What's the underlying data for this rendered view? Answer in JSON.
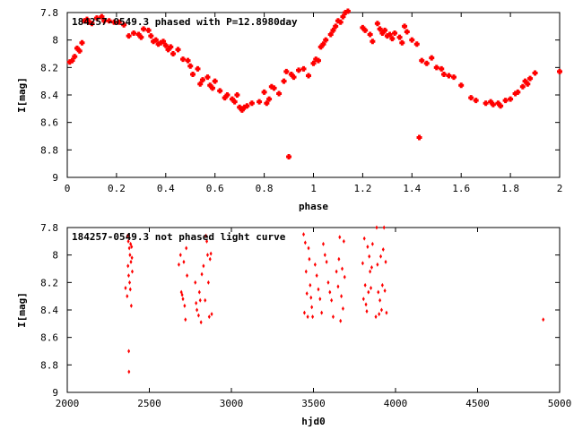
{
  "chart_data": [
    {
      "type": "scatter",
      "title": "184257-0549.3 phased with P=12.8980day",
      "xlabel": "phase",
      "ylabel": "I[mag]",
      "xlim": [
        0,
        2
      ],
      "ylim": [
        9,
        7.8
      ],
      "y_inverted": true,
      "xticks": [
        "0",
        "0.2",
        "0.4",
        "0.6",
        "0.8",
        "1",
        "1.2",
        "1.4",
        "1.6",
        "1.8",
        "2"
      ],
      "yticks": [
        "7.8",
        "8",
        "8.2",
        "8.4",
        "8.6",
        "8.8",
        "9"
      ],
      "marker_color": "#ff0000",
      "points": [
        [
          0.01,
          8.16
        ],
        [
          0.02,
          8.15
        ],
        [
          0.03,
          8.12
        ],
        [
          0.04,
          8.06
        ],
        [
          0.05,
          8.08
        ],
        [
          0.06,
          8.02
        ],
        [
          0.07,
          7.86
        ],
        [
          0.08,
          7.85
        ],
        [
          0.09,
          7.87
        ],
        [
          0.1,
          7.88
        ],
        [
          0.12,
          7.84
        ],
        [
          0.14,
          7.83
        ],
        [
          0.15,
          7.86
        ],
        [
          0.17,
          7.86
        ],
        [
          0.19,
          7.87
        ],
        [
          0.21,
          7.87
        ],
        [
          0.23,
          7.89
        ],
        [
          0.25,
          7.97
        ],
        [
          0.27,
          7.95
        ],
        [
          0.29,
          7.96
        ],
        [
          0.3,
          7.98
        ],
        [
          0.31,
          7.92
        ],
        [
          0.33,
          7.93
        ],
        [
          0.34,
          7.97
        ],
        [
          0.35,
          8.01
        ],
        [
          0.36,
          8.0
        ],
        [
          0.37,
          8.03
        ],
        [
          0.38,
          8.02
        ],
        [
          0.39,
          8.01
        ],
        [
          0.4,
          8.04
        ],
        [
          0.41,
          8.07
        ],
        [
          0.42,
          8.05
        ],
        [
          0.43,
          8.1
        ],
        [
          0.45,
          8.07
        ],
        [
          0.47,
          8.14
        ],
        [
          0.49,
          8.15
        ],
        [
          0.5,
          8.19
        ],
        [
          0.51,
          8.25
        ],
        [
          0.53,
          8.21
        ],
        [
          0.54,
          8.32
        ],
        [
          0.55,
          8.29
        ],
        [
          0.57,
          8.27
        ],
        [
          0.58,
          8.33
        ],
        [
          0.59,
          8.35
        ],
        [
          0.6,
          8.3
        ],
        [
          0.62,
          8.37
        ],
        [
          0.64,
          8.42
        ],
        [
          0.65,
          8.4
        ],
        [
          0.67,
          8.43
        ],
        [
          0.68,
          8.45
        ],
        [
          0.69,
          8.4
        ],
        [
          0.7,
          8.49
        ],
        [
          0.71,
          8.51
        ],
        [
          0.72,
          8.49
        ],
        [
          0.73,
          8.48
        ],
        [
          0.75,
          8.46
        ],
        [
          0.78,
          8.45
        ],
        [
          0.8,
          8.38
        ],
        [
          0.81,
          8.46
        ],
        [
          0.82,
          8.43
        ],
        [
          0.83,
          8.34
        ],
        [
          0.84,
          8.35
        ],
        [
          0.86,
          8.39
        ],
        [
          0.88,
          8.3
        ],
        [
          0.89,
          8.23
        ],
        [
          0.9,
          8.85
        ],
        [
          0.91,
          8.25
        ],
        [
          0.92,
          8.27
        ],
        [
          0.94,
          8.22
        ],
        [
          0.96,
          8.21
        ],
        [
          0.98,
          8.26
        ],
        [
          1.0,
          8.17
        ],
        [
          1.01,
          8.14
        ],
        [
          1.02,
          8.15
        ],
        [
          1.03,
          8.05
        ],
        [
          1.04,
          8.03
        ],
        [
          1.05,
          8.0
        ],
        [
          1.07,
          7.96
        ],
        [
          1.08,
          7.93
        ],
        [
          1.09,
          7.9
        ],
        [
          1.1,
          7.86
        ],
        [
          1.11,
          7.87
        ],
        [
          1.12,
          7.83
        ],
        [
          1.13,
          7.8
        ],
        [
          1.14,
          7.79
        ],
        [
          1.2,
          7.91
        ],
        [
          1.21,
          7.93
        ],
        [
          1.23,
          7.96
        ],
        [
          1.24,
          8.01
        ],
        [
          1.26,
          7.88
        ],
        [
          1.27,
          7.92
        ],
        [
          1.28,
          7.95
        ],
        [
          1.29,
          7.93
        ],
        [
          1.3,
          7.97
        ],
        [
          1.31,
          7.96
        ],
        [
          1.32,
          7.99
        ],
        [
          1.33,
          7.95
        ],
        [
          1.35,
          7.98
        ],
        [
          1.36,
          8.02
        ],
        [
          1.37,
          7.9
        ],
        [
          1.38,
          7.94
        ],
        [
          1.4,
          8.0
        ],
        [
          1.42,
          8.03
        ],
        [
          1.43,
          8.71
        ],
        [
          1.44,
          8.15
        ],
        [
          1.46,
          8.17
        ],
        [
          1.48,
          8.13
        ],
        [
          1.5,
          8.2
        ],
        [
          1.52,
          8.21
        ],
        [
          1.53,
          8.25
        ],
        [
          1.55,
          8.26
        ],
        [
          1.57,
          8.27
        ],
        [
          1.6,
          8.33
        ],
        [
          1.64,
          8.42
        ],
        [
          1.66,
          8.44
        ],
        [
          1.7,
          8.46
        ],
        [
          1.72,
          8.45
        ],
        [
          1.73,
          8.47
        ],
        [
          1.75,
          8.46
        ],
        [
          1.76,
          8.48
        ],
        [
          1.78,
          8.44
        ],
        [
          1.8,
          8.43
        ],
        [
          1.82,
          8.39
        ],
        [
          1.83,
          8.38
        ],
        [
          1.85,
          8.34
        ],
        [
          1.86,
          8.3
        ],
        [
          1.87,
          8.32
        ],
        [
          1.88,
          8.28
        ],
        [
          1.9,
          8.24
        ],
        [
          2.0,
          8.23
        ]
      ]
    },
    {
      "type": "scatter",
      "title": "184257-0549.3 not phased light curve",
      "xlabel": "hjd0",
      "ylabel": "I[mag]",
      "xlim": [
        2000,
        5000
      ],
      "ylim": [
        9,
        7.8
      ],
      "y_inverted": true,
      "xticks": [
        "2000",
        "2500",
        "3000",
        "3500",
        "4000",
        "4500",
        "5000"
      ],
      "yticks": [
        "7.8",
        "8",
        "8.2",
        "8.4",
        "8.6",
        "8.8",
        "9"
      ],
      "marker_color": "#ff0000",
      "points": [
        [
          2355,
          8.24
        ],
        [
          2365,
          8.3
        ],
        [
          2368,
          7.86
        ],
        [
          2370,
          8.08
        ],
        [
          2372,
          7.9
        ],
        [
          2374,
          8.15
        ],
        [
          2375,
          8.7
        ],
        [
          2376,
          8.85
        ],
        [
          2378,
          7.95
        ],
        [
          2380,
          8.2
        ],
        [
          2382,
          8.0
        ],
        [
          2384,
          8.25
        ],
        [
          2386,
          7.92
        ],
        [
          2388,
          8.05
        ],
        [
          2390,
          8.37
        ],
        [
          2392,
          7.94
        ],
        [
          2394,
          8.02
        ],
        [
          2396,
          8.12
        ],
        [
          2680,
          8.07
        ],
        [
          2690,
          8.0
        ],
        [
          2695,
          8.27
        ],
        [
          2700,
          8.29
        ],
        [
          2705,
          8.32
        ],
        [
          2710,
          8.05
        ],
        [
          2715,
          8.37
        ],
        [
          2720,
          8.47
        ],
        [
          2725,
          7.95
        ],
        [
          2730,
          8.15
        ],
        [
          2780,
          8.2
        ],
        [
          2785,
          8.35
        ],
        [
          2790,
          8.4
        ],
        [
          2800,
          8.44
        ],
        [
          2805,
          8.27
        ],
        [
          2810,
          8.33
        ],
        [
          2815,
          8.49
        ],
        [
          2820,
          8.14
        ],
        [
          2830,
          8.08
        ],
        [
          2840,
          8.33
        ],
        [
          2845,
          7.86
        ],
        [
          2850,
          7.9
        ],
        [
          2855,
          8.0
        ],
        [
          2860,
          8.2
        ],
        [
          2865,
          8.45
        ],
        [
          2870,
          8.03
        ],
        [
          2875,
          7.99
        ],
        [
          2880,
          8.43
        ],
        [
          3440,
          7.85
        ],
        [
          3445,
          8.42
        ],
        [
          3450,
          7.91
        ],
        [
          3455,
          8.12
        ],
        [
          3460,
          8.28
        ],
        [
          3465,
          8.45
        ],
        [
          3470,
          7.95
        ],
        [
          3475,
          8.03
        ],
        [
          3480,
          8.22
        ],
        [
          3485,
          8.31
        ],
        [
          3490,
          8.38
        ],
        [
          3495,
          8.45
        ],
        [
          3510,
          8.07
        ],
        [
          3520,
          8.15
        ],
        [
          3530,
          8.25
        ],
        [
          3540,
          8.32
        ],
        [
          3550,
          8.42
        ],
        [
          3560,
          7.92
        ],
        [
          3570,
          8.0
        ],
        [
          3580,
          8.05
        ],
        [
          3590,
          8.2
        ],
        [
          3600,
          8.27
        ],
        [
          3610,
          8.33
        ],
        [
          3620,
          8.45
        ],
        [
          3640,
          8.12
        ],
        [
          3650,
          8.23
        ],
        [
          3655,
          8.03
        ],
        [
          3660,
          7.87
        ],
        [
          3665,
          8.48
        ],
        [
          3670,
          8.3
        ],
        [
          3675,
          8.1
        ],
        [
          3680,
          8.39
        ],
        [
          3685,
          7.9
        ],
        [
          3690,
          8.16
        ],
        [
          3800,
          8.06
        ],
        [
          3805,
          8.32
        ],
        [
          3810,
          7.88
        ],
        [
          3815,
          8.22
        ],
        [
          3820,
          8.36
        ],
        [
          3825,
          8.41
        ],
        [
          3830,
          7.94
        ],
        [
          3835,
          8.27
        ],
        [
          3840,
          8.01
        ],
        [
          3845,
          8.12
        ],
        [
          3850,
          8.24
        ],
        [
          3855,
          8.09
        ],
        [
          3860,
          7.92
        ],
        [
          3880,
          8.45
        ],
        [
          3885,
          7.8
        ],
        [
          3890,
          8.07
        ],
        [
          3895,
          8.27
        ],
        [
          3900,
          8.43
        ],
        [
          3905,
          8.33
        ],
        [
          3910,
          8.01
        ],
        [
          3915,
          8.4
        ],
        [
          3920,
          8.22
        ],
        [
          3925,
          7.96
        ],
        [
          3930,
          7.8
        ],
        [
          3935,
          8.26
        ],
        [
          3940,
          8.05
        ],
        [
          3945,
          8.42
        ],
        [
          4900,
          8.47
        ]
      ]
    }
  ]
}
